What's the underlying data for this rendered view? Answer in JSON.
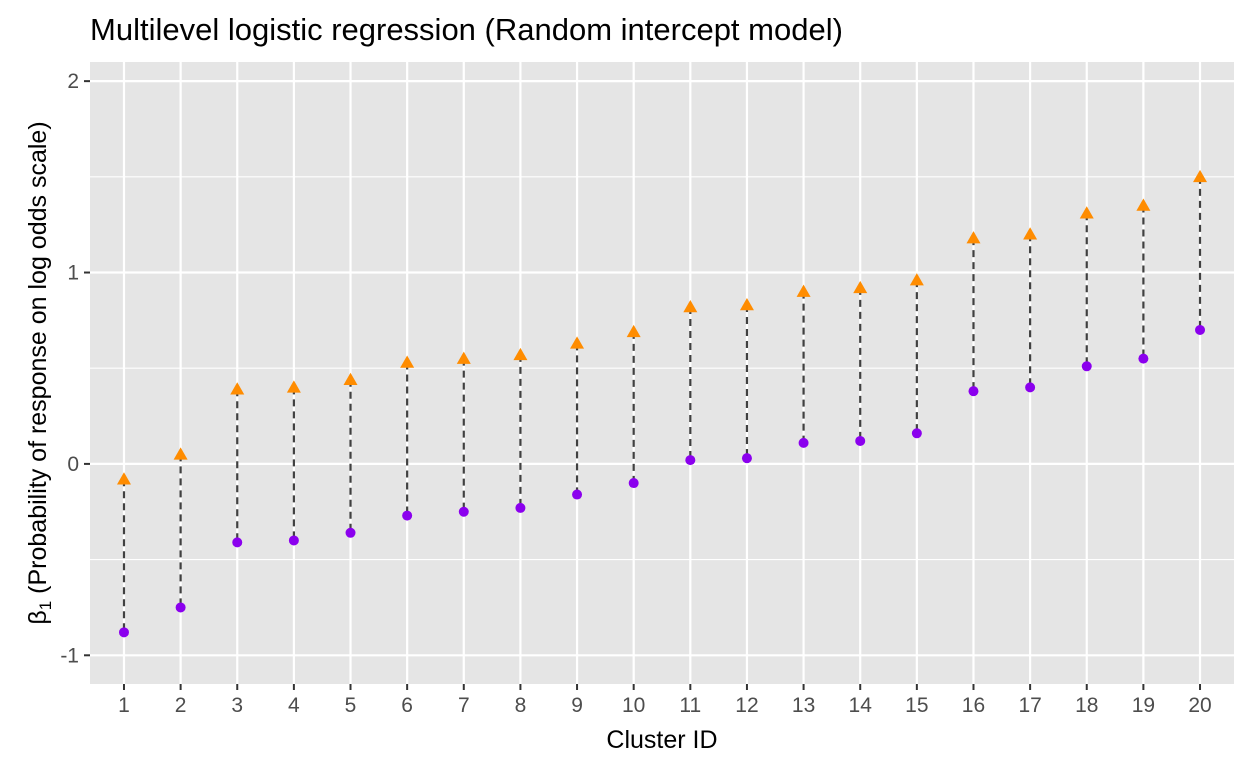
{
  "chart_data": {
    "type": "scatter",
    "title": "Multilevel logistic regression (Random intercept model)",
    "xlabel": "Cluster ID",
    "ylabel_symbol": "β",
    "ylabel_subscript": "1",
    "ylabel_text": " (Probability of response on log odds scale)",
    "x": [
      1,
      2,
      3,
      4,
      5,
      6,
      7,
      8,
      9,
      10,
      11,
      12,
      13,
      14,
      15,
      16,
      17,
      18,
      19,
      20
    ],
    "x_tick_labels": [
      "1",
      "2",
      "3",
      "4",
      "5",
      "6",
      "7",
      "8",
      "9",
      "10",
      "11",
      "12",
      "13",
      "14",
      "15",
      "16",
      "17",
      "18",
      "19",
      "20"
    ],
    "y_ticks": [
      -1,
      0,
      1,
      2
    ],
    "y_tick_labels": [
      "-1",
      "0",
      "1",
      "2"
    ],
    "ylim": [
      -1.15,
      2.1
    ],
    "xlim": [
      0.4,
      20.6
    ],
    "grid": true,
    "legend": "none",
    "series": [
      {
        "marker": "triangle",
        "color": "#FF8C00",
        "values": [
          -0.08,
          0.05,
          0.39,
          0.4,
          0.44,
          0.53,
          0.55,
          0.57,
          0.63,
          0.69,
          0.82,
          0.83,
          0.9,
          0.92,
          0.96,
          1.18,
          1.2,
          1.31,
          1.35,
          1.5
        ]
      },
      {
        "marker": "circle",
        "color": "#8B00EE",
        "values": [
          -0.88,
          -0.75,
          -0.41,
          -0.4,
          -0.36,
          -0.27,
          -0.25,
          -0.23,
          -0.16,
          -0.1,
          0.02,
          0.03,
          0.11,
          0.12,
          0.16,
          0.38,
          0.4,
          0.51,
          0.55,
          0.7
        ]
      }
    ],
    "connector": {
      "style": "dashed",
      "color": "#404040"
    },
    "panel_background": "#E5E5E5",
    "grid_color": "#FFFFFF"
  }
}
